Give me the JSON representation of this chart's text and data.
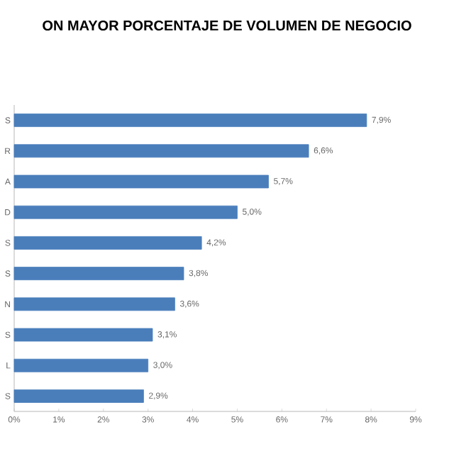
{
  "chart_data": {
    "type": "bar",
    "orientation": "horizontal",
    "title": "ON MAYOR PORCENTAJE DE VOLUMEN DE NEGOCIO",
    "categories": [
      "S",
      "R",
      "A",
      "D",
      "S",
      "S",
      "N",
      "S",
      "L",
      "S"
    ],
    "values": [
      7.9,
      6.6,
      5.7,
      5.0,
      4.2,
      3.8,
      3.6,
      3.1,
      3.0,
      2.9
    ],
    "value_labels": [
      "7,9%",
      "6,6%",
      "5,7%",
      "5,0%",
      "4,2%",
      "3,8%",
      "3,6%",
      "3,1%",
      "3,0%",
      "2,9%"
    ],
    "color": "#4a7ebb",
    "xlim": [
      0,
      9
    ],
    "xticks": [
      {
        "value": 0,
        "label": "0%"
      },
      {
        "value": 1,
        "label": "1%"
      },
      {
        "value": 2,
        "label": "2%"
      },
      {
        "value": 3,
        "label": "3%"
      },
      {
        "value": 4,
        "label": "4%"
      },
      {
        "value": 5,
        "label": "5%"
      },
      {
        "value": 6,
        "label": "6%"
      },
      {
        "value": 7,
        "label": "7%"
      },
      {
        "value": 8,
        "label": "8%"
      },
      {
        "value": 9,
        "label": "9%"
      }
    ]
  }
}
